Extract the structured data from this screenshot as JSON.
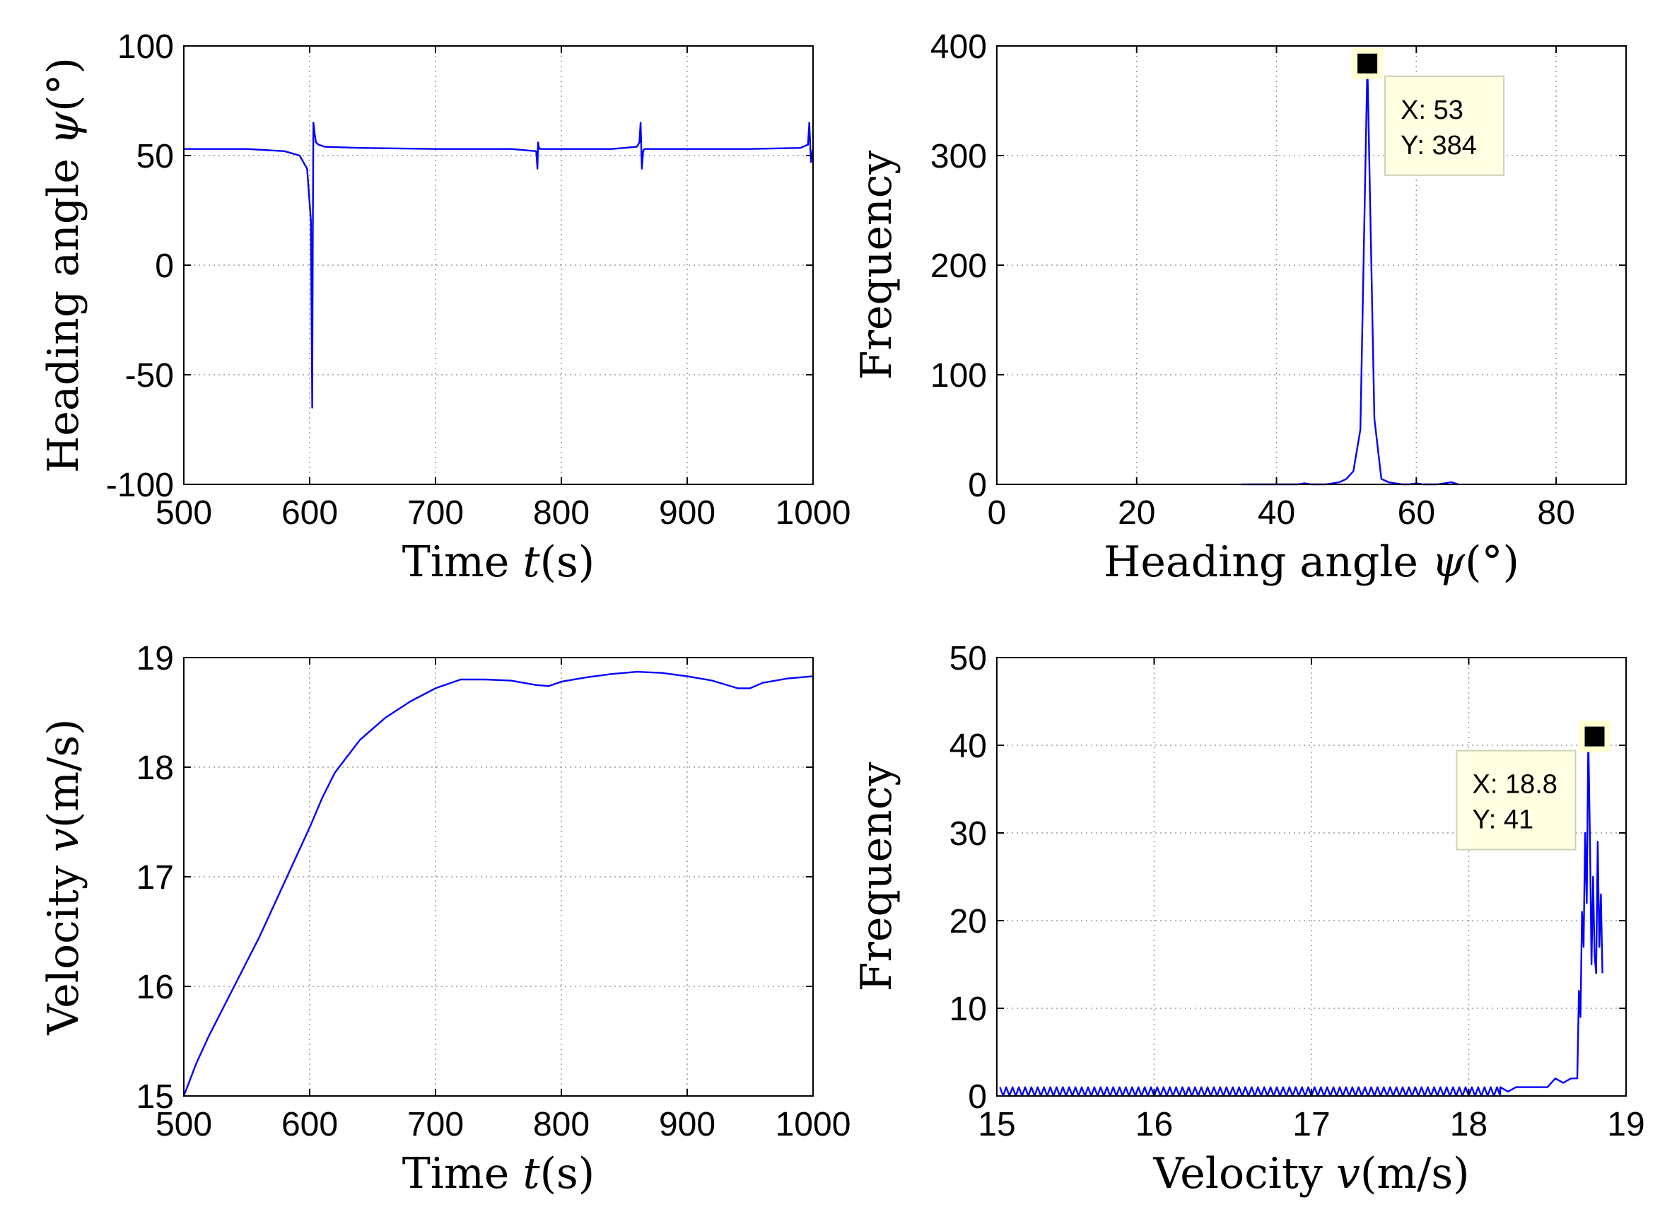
{
  "chart_data": [
    {
      "id": "heading-time",
      "type": "line",
      "title": "",
      "xlabel": "Time",
      "xlabel_var": "t",
      "xlabel_unit": "(s)",
      "ylabel": "Heading angle",
      "ylabel_var": "ψ",
      "ylabel_unit": "(°)",
      "xlim": [
        500,
        1000
      ],
      "ylim": [
        -100,
        100
      ],
      "xticks": [
        500,
        600,
        700,
        800,
        900,
        1000
      ],
      "yticks": [
        -100,
        -50,
        0,
        50,
        100
      ],
      "grid": true,
      "series": [
        {
          "name": "heading",
          "color": "#0000ff",
          "x": [
            500,
            550,
            580,
            592,
            598,
            601,
            602,
            602.5,
            603,
            604,
            605,
            607,
            612,
            640,
            700,
            760,
            780,
            781,
            781.5,
            782,
            783,
            790,
            840,
            860,
            862,
            863,
            864,
            864.5,
            865,
            866,
            870,
            900,
            950,
            990,
            996,
            997,
            998,
            998.5,
            999,
            1000
          ],
          "y": [
            53,
            53,
            52,
            50,
            44,
            20,
            -65,
            10,
            65,
            60,
            56,
            55,
            54,
            53.5,
            53,
            53,
            52,
            44,
            56,
            54,
            53,
            53,
            53,
            54,
            56,
            65,
            44,
            48,
            52,
            53,
            53,
            53,
            53,
            53.5,
            55,
            65,
            52,
            47,
            50,
            53
          ]
        }
      ]
    },
    {
      "id": "heading-histogram",
      "type": "line",
      "title": "",
      "xlabel": "Heading angle",
      "xlabel_var": "ψ",
      "xlabel_unit": "(°)",
      "ylabel": "Frequency",
      "xlim": [
        0,
        90
      ],
      "ylim": [
        0,
        400
      ],
      "xticks": [
        0,
        20,
        40,
        60,
        80
      ],
      "yticks": [
        0,
        100,
        200,
        300,
        400
      ],
      "grid": true,
      "series": [
        {
          "name": "frequency",
          "color": "#0000ff",
          "x": [
            35,
            37,
            40,
            43,
            44,
            45,
            47,
            48,
            49,
            50,
            51,
            52,
            53,
            54,
            55,
            56,
            57,
            58,
            59,
            60,
            61,
            63,
            64,
            65,
            66
          ],
          "y": [
            0,
            0,
            0,
            0,
            1,
            0,
            0,
            1,
            2,
            5,
            12,
            50,
            384,
            60,
            5,
            2,
            1,
            0,
            0,
            1,
            0,
            0,
            1,
            2,
            0
          ]
        }
      ],
      "datatip": {
        "x_text": "X: 53",
        "y_text": "Y: 384",
        "x": 53,
        "y": 384
      }
    },
    {
      "id": "velocity-time",
      "type": "line",
      "title": "",
      "xlabel": "Time",
      "xlabel_var": "t",
      "xlabel_unit": "(s)",
      "ylabel": "Velocity",
      "ylabel_var": "v",
      "ylabel_unit": "(m/s)",
      "xlim": [
        500,
        1000
      ],
      "ylim": [
        15,
        19
      ],
      "xticks": [
        500,
        600,
        700,
        800,
        900,
        1000
      ],
      "yticks": [
        15,
        16,
        17,
        18,
        19
      ],
      "grid": true,
      "series": [
        {
          "name": "velocity",
          "color": "#0000ff",
          "x": [
            500,
            510,
            520,
            540,
            560,
            580,
            600,
            610,
            620,
            630,
            640,
            660,
            680,
            700,
            720,
            740,
            760,
            780,
            790,
            800,
            820,
            840,
            860,
            880,
            900,
            920,
            940,
            950,
            960,
            980,
            1000
          ],
          "y": [
            15.0,
            15.3,
            15.55,
            16.0,
            16.45,
            16.95,
            17.45,
            17.72,
            17.95,
            18.1,
            18.25,
            18.45,
            18.6,
            18.72,
            18.8,
            18.8,
            18.79,
            18.75,
            18.74,
            18.78,
            18.82,
            18.85,
            18.87,
            18.86,
            18.83,
            18.79,
            18.72,
            18.72,
            18.77,
            18.81,
            18.83
          ]
        }
      ]
    },
    {
      "id": "velocity-histogram",
      "type": "line",
      "title": "",
      "xlabel": "Velocity",
      "xlabel_var": "v",
      "xlabel_unit": "(m/s)",
      "ylabel": "Frequency",
      "xlim": [
        15,
        19
      ],
      "ylim": [
        0,
        50
      ],
      "xticks": [
        15,
        16,
        17,
        18,
        19
      ],
      "yticks": [
        0,
        10,
        20,
        30,
        40,
        50
      ],
      "grid": true,
      "series": [
        {
          "name": "frequency",
          "color": "#0000ff",
          "oscillation": {
            "from": 15.02,
            "to": 18.2,
            "step": 0.02,
            "low": 0,
            "high": 1
          },
          "x": [
            18.2,
            18.25,
            18.3,
            18.35,
            18.5,
            18.55,
            18.6,
            18.65,
            18.69,
            18.7,
            18.71,
            18.72,
            18.73,
            18.74,
            18.75,
            18.76,
            18.77,
            18.78,
            18.79,
            18.8,
            18.81,
            18.82,
            18.83,
            18.84,
            18.85
          ],
          "y": [
            1,
            0.5,
            1,
            1,
            1,
            2,
            1.5,
            2,
            2,
            12,
            9,
            21,
            17,
            30,
            22,
            41,
            30,
            15,
            25,
            16,
            14,
            29,
            17,
            23,
            14
          ]
        }
      ],
      "datatip": {
        "x_text": "X: 18.8",
        "y_text": "Y: 41",
        "x": 18.8,
        "y": 41
      }
    }
  ]
}
